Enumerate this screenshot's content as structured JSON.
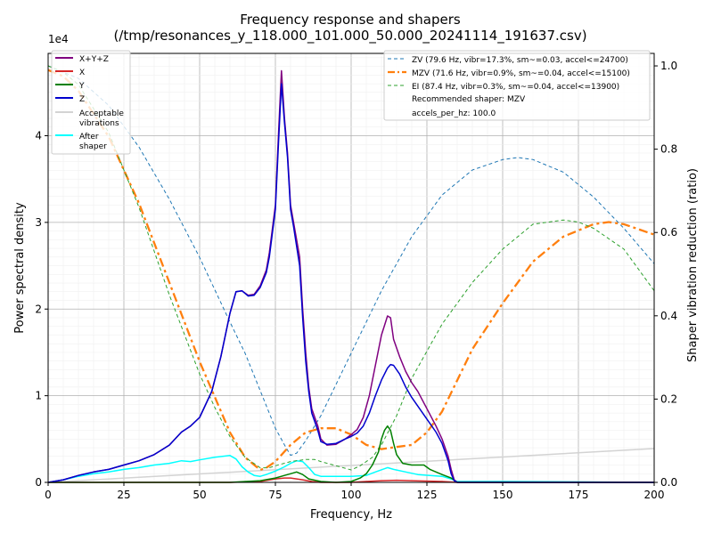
{
  "chart_data": {
    "type": "line",
    "title": "Frequency response and shapers",
    "subtitle": "(/tmp/resonances_y_118.000_101.000_50.000_20241114_191637.csv)",
    "xlabel": "Frequency, Hz",
    "ylabel": "Power spectral density",
    "y2label": "Shaper vibration reduction (ratio)",
    "y_multiplier": "1e4",
    "xlim": [
      0,
      200
    ],
    "ylim": [
      0,
      49500
    ],
    "y2lim": [
      0,
      1.03
    ],
    "grid": true,
    "x_ticks": [
      "0",
      "25",
      "50",
      "75",
      "100",
      "125",
      "150",
      "175",
      "200"
    ],
    "y_ticks": [
      "0",
      "1",
      "2",
      "3",
      "4"
    ],
    "y2_ticks": [
      "0.0",
      "0.2",
      "0.4",
      "0.6",
      "0.8",
      "1.0"
    ],
    "legend_left": {
      "placement": "top-left",
      "entries": [
        {
          "label": "X+Y+Z",
          "color": "#800080"
        },
        {
          "label": "X",
          "color": "#d62728"
        },
        {
          "label": "Y",
          "color": "#008000"
        },
        {
          "label": "Z",
          "color": "#0000cd"
        },
        {
          "label": "Acceptable vibrations",
          "color": "#d3d3d3"
        },
        {
          "label": "After shaper",
          "color": "#00ffff"
        }
      ]
    },
    "legend_right": {
      "placement": "top-right",
      "entries": [
        {
          "label": "ZV (79.6 Hz, vibr=17.3%, sm~=0.03, accel<=24700)",
          "color": "#1f77b4",
          "style": "dashed"
        },
        {
          "label": "MZV (71.6 Hz, vibr=0.9%, sm~=0.04, accel<=15100)",
          "color": "#ff7f0e",
          "style": "dashdot"
        },
        {
          "label": "EI (87.4 Hz, vibr=0.3%, sm~=0.04, accel<=13900)",
          "color": "#2ca02c",
          "style": "dashed"
        }
      ],
      "notes": [
        "Recommended shaper: MZV",
        "accels_per_hz: 100.0"
      ]
    },
    "series": [
      {
        "name": "X+Y+Z",
        "axis": "left",
        "color": "#800080",
        "width": 1.5,
        "x": [
          0,
          5,
          10,
          15,
          20,
          25,
          30,
          35,
          40,
          44,
          47,
          50,
          54,
          57,
          60,
          62,
          64,
          66,
          68,
          70,
          72,
          73,
          75,
          76,
          77,
          78,
          79,
          80,
          81,
          83,
          84,
          85,
          86,
          87,
          89,
          90,
          92,
          95,
          98,
          100,
          102,
          104,
          106,
          108,
          110,
          112,
          113,
          114,
          116,
          118,
          120,
          122,
          125,
          128,
          130,
          132,
          133,
          134,
          135,
          140,
          150,
          175,
          200
        ],
        "y": [
          0,
          300,
          800,
          1200,
          1500,
          2000,
          2500,
          3200,
          4300,
          5800,
          6500,
          7500,
          10500,
          14500,
          19500,
          22000,
          22100,
          21600,
          21700,
          22700,
          24500,
          26500,
          32000,
          40000,
          47500,
          42000,
          38000,
          32000,
          30000,
          26000,
          20000,
          15000,
          11000,
          8500,
          6500,
          5000,
          4300,
          4400,
          5000,
          5500,
          6100,
          7500,
          10000,
          13500,
          17000,
          19200,
          19000,
          16500,
          14500,
          12800,
          11500,
          10500,
          8500,
          6500,
          5000,
          3000,
          1500,
          300,
          0,
          0,
          0,
          0,
          0
        ]
      },
      {
        "name": "X",
        "axis": "left",
        "color": "#d62728",
        "width": 1.5,
        "x": [
          0,
          60,
          70,
          75,
          78,
          80,
          82,
          84,
          87,
          90,
          100,
          105,
          110,
          115,
          120,
          130,
          135,
          200
        ],
        "y": [
          0,
          0,
          100,
          400,
          500,
          500,
          400,
          300,
          100,
          0,
          0,
          100,
          200,
          250,
          200,
          100,
          0,
          0
        ]
      },
      {
        "name": "Y",
        "axis": "left",
        "color": "#008000",
        "width": 1.5,
        "x": [
          0,
          60,
          70,
          75,
          78,
          80,
          82,
          84,
          86,
          90,
          95,
          100,
          103,
          105,
          107,
          109,
          110,
          111,
          112,
          113,
          114,
          115,
          117,
          120,
          124,
          126,
          130,
          133,
          135,
          200
        ],
        "y": [
          0,
          0,
          200,
          500,
          800,
          1000,
          1200,
          900,
          400,
          100,
          0,
          100,
          500,
          1000,
          2000,
          3500,
          5000,
          6000,
          6500,
          6000,
          4500,
          3200,
          2200,
          2000,
          2000,
          1500,
          900,
          500,
          0,
          0
        ]
      },
      {
        "name": "Z",
        "axis": "left",
        "color": "#0000cd",
        "width": 1.5,
        "x": [
          0,
          5,
          10,
          15,
          20,
          25,
          30,
          35,
          40,
          44,
          47,
          50,
          54,
          57,
          60,
          62,
          64,
          66,
          68,
          70,
          72,
          73,
          75,
          76,
          77,
          78,
          79,
          80,
          81,
          83,
          84,
          85,
          86,
          87,
          89,
          90,
          92,
          95,
          98,
          100,
          102,
          104,
          106,
          108,
          110,
          112,
          113,
          114,
          116,
          118,
          120,
          122,
          125,
          128,
          130,
          132,
          133,
          134,
          135,
          140,
          150,
          175,
          200
        ],
        "y": [
          0,
          300,
          800,
          1200,
          1500,
          2000,
          2500,
          3200,
          4300,
          5800,
          6500,
          7500,
          10500,
          14500,
          19500,
          22000,
          22100,
          21500,
          21600,
          22500,
          24200,
          26000,
          31500,
          39000,
          46000,
          41500,
          37500,
          31500,
          29500,
          25000,
          19000,
          14000,
          10500,
          8000,
          6000,
          4700,
          4400,
          4500,
          5000,
          5300,
          5700,
          6500,
          8000,
          10000,
          11800,
          13200,
          13600,
          13500,
          12500,
          11000,
          9800,
          8800,
          7300,
          5800,
          4500,
          2500,
          1000,
          200,
          0,
          0,
          0,
          0,
          0
        ]
      },
      {
        "name": "Acceptable vibrations",
        "axis": "left",
        "color": "#d3d3d3",
        "width": 1.5,
        "x": [
          0,
          200
        ],
        "y": [
          0,
          3900
        ]
      },
      {
        "name": "After shaper",
        "axis": "left",
        "color": "#00ffff",
        "width": 1.5,
        "x": [
          0,
          5,
          10,
          15,
          20,
          25,
          30,
          35,
          40,
          44,
          47,
          50,
          55,
          60,
          62,
          64,
          66,
          68,
          70,
          72,
          75,
          78,
          80,
          82,
          84,
          86,
          88,
          90,
          95,
          100,
          105,
          108,
          112,
          114,
          118,
          122,
          126,
          130,
          133,
          135,
          150,
          200
        ],
        "y": [
          0,
          300,
          700,
          1000,
          1200,
          1500,
          1700,
          2000,
          2200,
          2500,
          2400,
          2600,
          2900,
          3100,
          2700,
          1800,
          1200,
          800,
          700,
          900,
          1300,
          1800,
          2200,
          2500,
          2400,
          1700,
          900,
          700,
          700,
          700,
          800,
          1200,
          1700,
          1500,
          1200,
          900,
          800,
          700,
          400,
          100,
          100,
          0
        ]
      },
      {
        "name": "ZV (79.6 Hz, vibr=17.3%, sm~=0.03, accel<=24700)",
        "axis": "right",
        "color": "#1f77b4",
        "width": 1,
        "dash": "4,3",
        "x": [
          0,
          10,
          20,
          30,
          40,
          50,
          60,
          65,
          70,
          75,
          78,
          80,
          82,
          85,
          90,
          100,
          110,
          120,
          130,
          140,
          150,
          155,
          160,
          170,
          180,
          190,
          200
        ],
        "y": [
          1.0,
          0.97,
          0.905,
          0.805,
          0.68,
          0.54,
          0.385,
          0.31,
          0.22,
          0.13,
          0.09,
          0.065,
          0.07,
          0.1,
          0.16,
          0.31,
          0.46,
          0.59,
          0.69,
          0.75,
          0.775,
          0.78,
          0.775,
          0.745,
          0.685,
          0.61,
          0.525
        ]
      },
      {
        "name": "MZV (71.6 Hz, vibr=0.9%, sm~=0.04, accel<=15100)",
        "axis": "right",
        "color": "#ff7f0e",
        "width": 2.3,
        "dash": "10,4,3,4",
        "x": [
          0,
          5,
          10,
          20,
          30,
          40,
          50,
          60,
          65,
          70,
          72,
          75,
          80,
          85,
          90,
          95,
          100,
          105,
          110,
          115,
          120,
          125,
          130,
          140,
          150,
          160,
          170,
          180,
          185,
          190,
          200
        ],
        "y": [
          0.99,
          0.975,
          0.94,
          0.83,
          0.67,
          0.48,
          0.29,
          0.12,
          0.06,
          0.03,
          0.035,
          0.05,
          0.09,
          0.12,
          0.13,
          0.13,
          0.115,
          0.09,
          0.08,
          0.085,
          0.09,
          0.12,
          0.17,
          0.32,
          0.43,
          0.53,
          0.59,
          0.62,
          0.625,
          0.62,
          0.595
        ]
      },
      {
        "name": "EI (87.4 Hz, vibr=0.3%, sm~=0.04, accel<=13900)",
        "axis": "right",
        "color": "#2ca02c",
        "width": 1,
        "dash": "4,3",
        "x": [
          0,
          5,
          10,
          20,
          30,
          40,
          50,
          55,
          60,
          65,
          70,
          73,
          75,
          80,
          85,
          88,
          90,
          95,
          100,
          103,
          107,
          110,
          115,
          120,
          130,
          140,
          150,
          160,
          170,
          175,
          180,
          190,
          200
        ],
        "y": [
          1.0,
          0.985,
          0.955,
          0.84,
          0.66,
          0.45,
          0.26,
          0.18,
          0.11,
          0.06,
          0.035,
          0.035,
          0.04,
          0.05,
          0.055,
          0.055,
          0.05,
          0.04,
          0.03,
          0.04,
          0.06,
          0.09,
          0.16,
          0.25,
          0.38,
          0.48,
          0.56,
          0.62,
          0.63,
          0.625,
          0.61,
          0.56,
          0.46
        ]
      }
    ]
  }
}
